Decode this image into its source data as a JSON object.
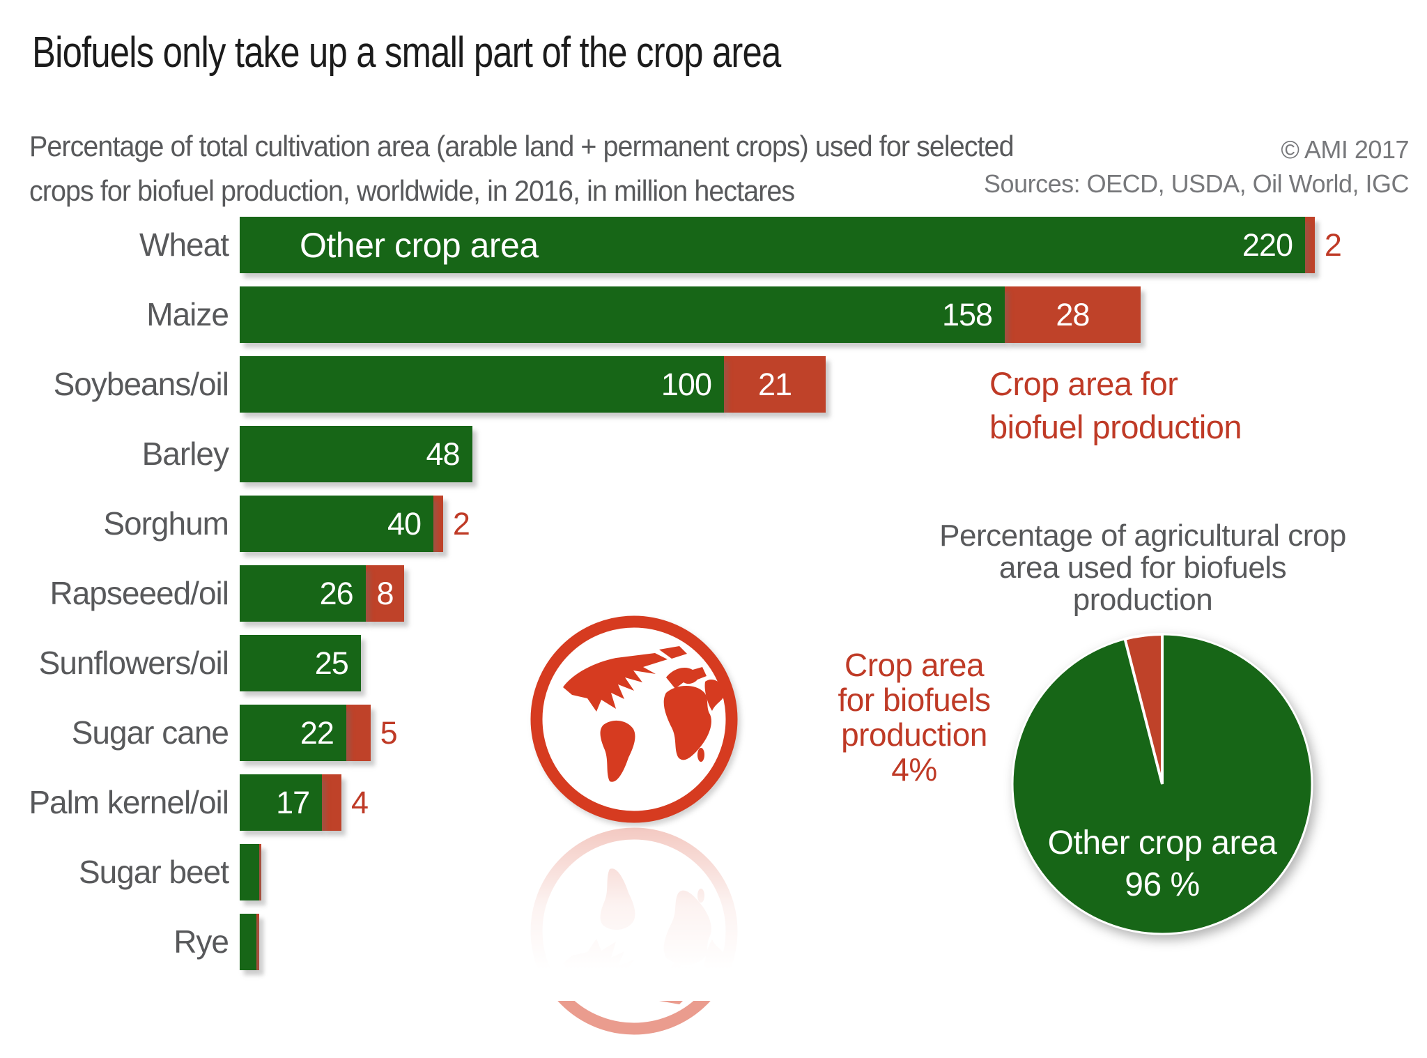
{
  "title": "Biofuels only take up a small part of the crop area",
  "subtitle_line1": "Percentage of total cultivation area (arable land + permanent crops) used for selected",
  "subtitle_line2": "crops for biofuel production, worldwide, in 2016, in million hectares",
  "copyright": "© AMI 2017",
  "sources": "Sources: OECD, USDA, Oil World, IGC",
  "colors": {
    "green": "#176617",
    "bar_red": "#bf4229",
    "red_text": "#bf3a26",
    "globe_red": "#d63b20",
    "gray_text": "#58595b",
    "meta_gray": "#77787b"
  },
  "legend": {
    "line1": "Crop area for",
    "line2": "biofuel production"
  },
  "chart_data": [
    {
      "type": "bar",
      "orientation": "horizontal",
      "title": "Percentage of total cultivation area (arable land + permanent crops) used for selected crops for biofuel production, worldwide, in 2016, in million hectares",
      "unit": "million hectares",
      "categories": [
        "Wheat",
        "Maize",
        "Soybeans/oil",
        "Barley",
        "Sorghum",
        "Rapseeed/oil",
        "Sunflowers/oil",
        "Sugar cane",
        "Palm kernel/oil",
        "Sugar beet",
        "Rye"
      ],
      "series": [
        {
          "name": "Other crop area",
          "values": [
            220,
            158,
            100,
            48,
            40,
            26,
            25,
            22,
            17,
            4,
            3.5
          ],
          "labels": [
            "220",
            "158",
            "100",
            "48",
            "40",
            "26",
            "25",
            "22",
            "17",
            "",
            ""
          ]
        },
        {
          "name": "Crop area for biofuel production",
          "values": [
            2,
            28,
            21,
            0,
            2,
            8,
            0,
            5,
            4,
            0.5,
            0.5
          ],
          "labels": [
            "2",
            "28",
            "21",
            "",
            "2",
            "8",
            "",
            "5",
            "4",
            "",
            ""
          ],
          "label_pos": [
            "outside",
            "inside",
            "inside",
            "none",
            "outside",
            "inside",
            "none",
            "outside",
            "outside",
            "none",
            "none"
          ]
        }
      ],
      "annotation": {
        "text": "Other crop area",
        "row": 0
      },
      "legend_position": "right",
      "grid": false
    },
    {
      "type": "pie",
      "title": "Percentage of agricultural crop area used for biofuels production",
      "slices": [
        {
          "label": "Other crop area",
          "value": 96
        },
        {
          "label": "Crop area for biofuels production",
          "value": 4
        }
      ]
    }
  ],
  "pie_labels": {
    "title_lines": [
      "Percentage of agricultural crop",
      "area used for biofuels",
      "production"
    ],
    "outside_lines": [
      "Crop area",
      "for biofuels",
      "production",
      "4%"
    ],
    "inside_line1": "Other crop area",
    "inside_line2": "96 %"
  }
}
